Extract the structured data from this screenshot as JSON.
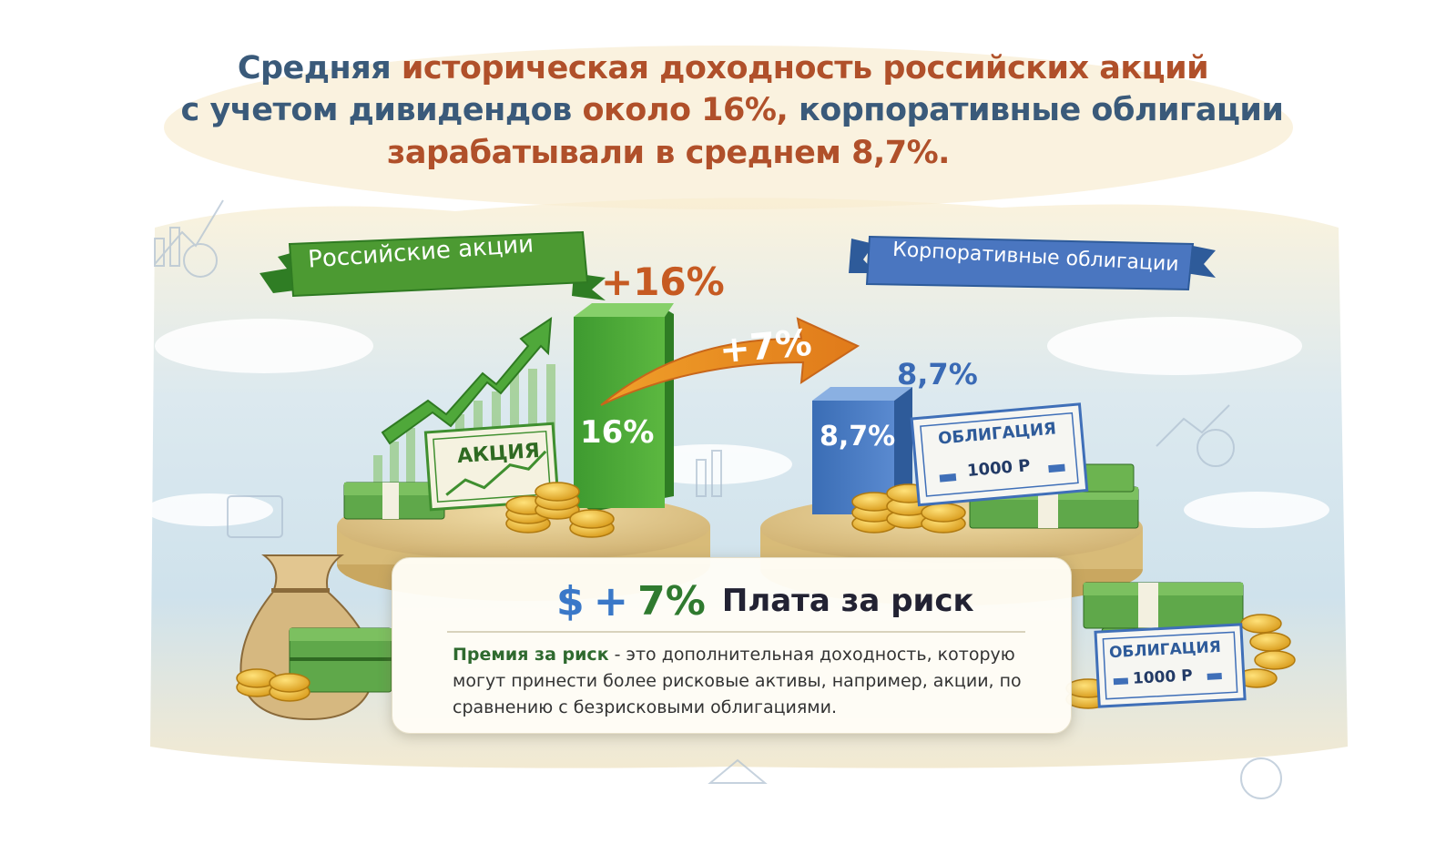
{
  "headline": {
    "line1_a": "Средняя ",
    "line1_b": "историческая доходность российских акций",
    "line2_a": "с учетом дивидендов ",
    "line2_b": "около 16%, ",
    "line2_c": "корпоративные облигации",
    "line3_a": "зарабатывали в среднем ",
    "line3_b": "8,7%."
  },
  "stocks": {
    "banner": "Российские акции",
    "top_percent": "+16%",
    "bar_label": "16%",
    "bar_value": 16,
    "certificate": "АКЦИЯ"
  },
  "bonds": {
    "banner": "Корпоративные облигации",
    "top_percent": "8,7%",
    "bar_label": "8,7%",
    "bar_value": 8.7,
    "certificate": "ОБЛИГАЦИЯ",
    "certificate_value": "1000 Р",
    "certificate2": "ОБЛИГАЦИЯ",
    "certificate2_value": "1000 Р"
  },
  "arrow_label": "+7%",
  "card": {
    "dollar": "$",
    "plus": "+",
    "premium": "7%",
    "title": "Плата за риск",
    "term": "Премия за риск",
    "body": " - это дополнительная доходность, которую могут принести более рисковые активы, например, акции, по сравнению с безрисковыми облигациями."
  },
  "colors": {
    "green": "#3f8f2f",
    "blue": "#3f6fb8",
    "orange": "#e8892a",
    "title_blue": "#3a5a7a",
    "title_brown": "#b0502a"
  }
}
